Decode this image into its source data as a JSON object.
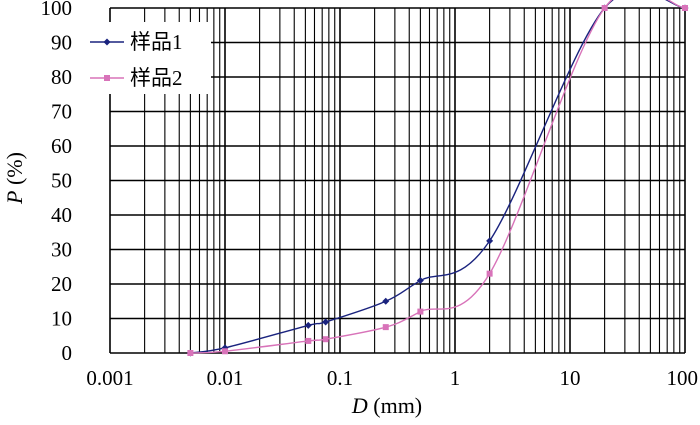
{
  "chart_data": {
    "type": "line",
    "title": "",
    "xlabel": {
      "var": "D",
      "unit": " (mm)"
    },
    "ylabel": {
      "var": "P",
      "unit": " (%)"
    },
    "x_scale": "log",
    "xlim": [
      0.001,
      100
    ],
    "ylim": [
      0,
      100
    ],
    "x_ticks": [
      "0.001",
      "0.01",
      "0.1",
      "1",
      "10",
      "100"
    ],
    "y_ticks": [
      "0",
      "10",
      "20",
      "30",
      "40",
      "50",
      "60",
      "70",
      "80",
      "90",
      "100"
    ],
    "grid": true,
    "legend_position": "top-left",
    "series": [
      {
        "name": "样品1",
        "color": "#1a237e",
        "marker": "diamond",
        "x": [
          0.005,
          0.01,
          0.053,
          0.075,
          0.25,
          0.5,
          2,
          20,
          100
        ],
        "y": [
          0,
          1.5,
          8,
          9,
          15,
          21,
          32.5,
          100,
          100
        ]
      },
      {
        "name": "样品2",
        "color": "#d873b9",
        "marker": "square",
        "x": [
          0.005,
          0.01,
          0.053,
          0.075,
          0.25,
          0.5,
          2,
          20,
          100
        ],
        "y": [
          0,
          0.5,
          3.5,
          4,
          7.5,
          12,
          23,
          100,
          100
        ]
      }
    ]
  }
}
